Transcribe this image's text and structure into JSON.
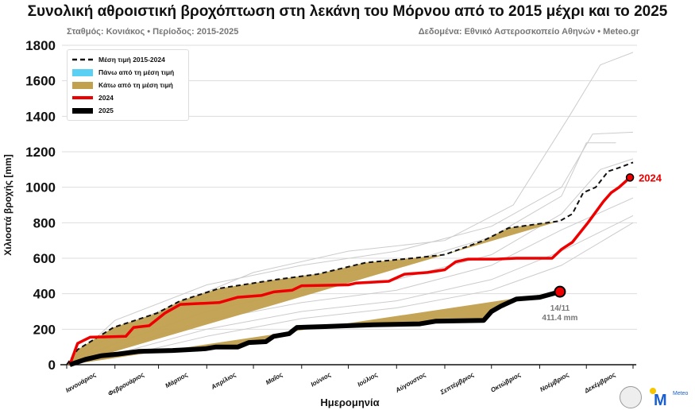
{
  "chart_data": {
    "type": "line",
    "title": "Συνολική αθροιστική βροχόπτωση στη λεκάνη του Μόρνου από το 2015 μέχρι και το 2025",
    "subtitle_left": "Σταθμός: Κονιάκος • Περίοδος: 2015-2025",
    "subtitle_right": "Δεδομένα: Εθνικό Αστεροσκοπείο Αθηνών • Meteo.gr",
    "xlabel": "Ημερομηνία",
    "ylabel": "Χιλιοστά βροχής [mm]",
    "ylim": [
      0,
      1800
    ],
    "yticks": [
      0,
      200,
      400,
      600,
      800,
      1000,
      1200,
      1400,
      1600,
      1800
    ],
    "xticks": [
      "Ιανουάριος",
      "Φεβρουάριος",
      "Μάρτιος",
      "Απρίλιος",
      "Μαΐος",
      "Ιούνιος",
      "Ιούλιος",
      "Αύγουστος",
      "Σεπτέμβριος",
      "Οκτώβριος",
      "Νοέμβριος",
      "Δεκέμβριος"
    ],
    "grid": true,
    "legend_placement": "top-left",
    "legend": [
      "Μέση τιμή 2015-2024",
      "Πάνω από τη μέση τιμή",
      "Κάτω από τη μέση τιμή",
      "2024",
      "2025"
    ],
    "colors": {
      "mean": "#111111",
      "above": "#5bd0f5",
      "below": "#c1a04e",
      "y2024": "#ee0000",
      "y2025": "#000000",
      "history": "#cccccc"
    },
    "mean": [
      [
        "01-01",
        0
      ],
      [
        "01-08",
        85
      ],
      [
        "01-31",
        210
      ],
      [
        "02-28",
        290
      ],
      [
        "03-15",
        360
      ],
      [
        "04-09",
        430
      ],
      [
        "05-16",
        480
      ],
      [
        "06-11",
        510
      ],
      [
        "07-12",
        575
      ],
      [
        "08-11",
        600
      ],
      [
        "09-01",
        620
      ],
      [
        "09-26",
        700
      ],
      [
        "10-12",
        770
      ],
      [
        "11-14",
        810
      ],
      [
        "11-22",
        850
      ],
      [
        "11-29",
        970
      ],
      [
        "12-07",
        1000
      ],
      [
        "12-15",
        1090
      ],
      [
        "12-22",
        1110
      ],
      [
        "12-31",
        1140
      ]
    ],
    "y2024": [
      [
        "01-03",
        0
      ],
      [
        "01-08",
        120
      ],
      [
        "01-16",
        155
      ],
      [
        "02-08",
        160
      ],
      [
        "02-13",
        210
      ],
      [
        "02-23",
        220
      ],
      [
        "03-05",
        290
      ],
      [
        "03-15",
        340
      ],
      [
        "04-09",
        350
      ],
      [
        "04-21",
        380
      ],
      [
        "05-06",
        390
      ],
      [
        "05-14",
        410
      ],
      [
        "05-26",
        420
      ],
      [
        "06-01",
        445
      ],
      [
        "07-01",
        450
      ],
      [
        "07-06",
        460
      ],
      [
        "07-27",
        470
      ],
      [
        "08-06",
        510
      ],
      [
        "08-21",
        520
      ],
      [
        "09-01",
        535
      ],
      [
        "09-08",
        580
      ],
      [
        "09-16",
        595
      ],
      [
        "10-04",
        595
      ],
      [
        "10-17",
        600
      ],
      [
        "11-09",
        600
      ],
      [
        "11-15",
        650
      ],
      [
        "11-22",
        690
      ],
      [
        "12-02",
        800
      ],
      [
        "12-12",
        920
      ],
      [
        "12-17",
        970
      ],
      [
        "12-22",
        1000
      ],
      [
        "12-29",
        1055
      ]
    ],
    "y2025": [
      [
        "01-03",
        0
      ],
      [
        "01-13",
        30
      ],
      [
        "01-23",
        50
      ],
      [
        "02-03",
        60
      ],
      [
        "02-16",
        75
      ],
      [
        "03-10",
        80
      ],
      [
        "03-31",
        90
      ],
      [
        "04-07",
        100
      ],
      [
        "04-21",
        100
      ],
      [
        "04-28",
        125
      ],
      [
        "05-09",
        130
      ],
      [
        "05-14",
        160
      ],
      [
        "05-24",
        175
      ],
      [
        "05-29",
        210
      ],
      [
        "06-16",
        215
      ],
      [
        "07-01",
        220
      ],
      [
        "07-17",
        225
      ],
      [
        "08-16",
        230
      ],
      [
        "08-26",
        245
      ],
      [
        "09-26",
        250
      ],
      [
        "10-01",
        300
      ],
      [
        "10-07",
        330
      ],
      [
        "10-17",
        370
      ],
      [
        "11-01",
        380
      ],
      [
        "11-14",
        411.4
      ]
    ],
    "history": [
      [
        [
          "01-01",
          0
        ],
        [
          "01-20",
          150
        ],
        [
          "03-01",
          300
        ],
        [
          "05-01",
          520
        ],
        [
          "07-01",
          640
        ],
        [
          "09-01",
          700
        ],
        [
          "10-15",
          900
        ],
        [
          "11-20",
          1400
        ],
        [
          "12-10",
          1690
        ],
        [
          "12-31",
          1760
        ]
      ],
      [
        [
          "01-01",
          0
        ],
        [
          "02-01",
          250
        ],
        [
          "04-01",
          450
        ],
        [
          "06-01",
          560
        ],
        [
          "08-01",
          640
        ],
        [
          "10-01",
          780
        ],
        [
          "11-15",
          1000
        ],
        [
          "12-05",
          1300
        ],
        [
          "12-31",
          1310
        ]
      ],
      [
        [
          "01-01",
          0
        ],
        [
          "02-01",
          180
        ],
        [
          "04-01",
          380
        ],
        [
          "06-01",
          500
        ],
        [
          "08-01",
          560
        ],
        [
          "10-01",
          720
        ],
        [
          "11-15",
          950
        ],
        [
          "12-01",
          1250
        ],
        [
          "12-20",
          1250
        ]
      ],
      [
        [
          "01-01",
          0
        ],
        [
          "02-01",
          120
        ],
        [
          "04-01",
          300
        ],
        [
          "06-01",
          420
        ],
        [
          "08-01",
          480
        ],
        [
          "10-01",
          620
        ],
        [
          "11-15",
          850
        ],
        [
          "12-10",
          1100
        ],
        [
          "12-31",
          1160
        ]
      ],
      [
        [
          "01-01",
          0
        ],
        [
          "02-01",
          90
        ],
        [
          "04-01",
          250
        ],
        [
          "06-01",
          350
        ],
        [
          "08-01",
          420
        ],
        [
          "10-01",
          560
        ],
        [
          "11-15",
          760
        ],
        [
          "12-31",
          940
        ]
      ],
      [
        [
          "01-01",
          0
        ],
        [
          "02-01",
          60
        ],
        [
          "04-01",
          200
        ],
        [
          "06-01",
          300
        ],
        [
          "08-01",
          360
        ],
        [
          "10-01",
          480
        ],
        [
          "11-15",
          640
        ],
        [
          "12-31",
          840
        ]
      ],
      [
        [
          "01-01",
          0
        ],
        [
          "02-01",
          40
        ],
        [
          "04-01",
          160
        ],
        [
          "06-01",
          260
        ],
        [
          "08-01",
          320
        ],
        [
          "10-01",
          420
        ],
        [
          "11-15",
          560
        ],
        [
          "12-31",
          800
        ]
      ]
    ],
    "annotations": {
      "label_2024": "2024",
      "label_2025_date": "14/11",
      "label_2025_value": "411.4 mm"
    }
  },
  "legend_labels": {
    "mean": "Μέση τιμή 2015-2024",
    "above": "Πάνω από τη μέση τιμή",
    "below": "Κάτω από τη μέση τιμή",
    "y2024": "2024",
    "y2025": "2025"
  },
  "logos": {
    "meteo": "Meteo"
  }
}
